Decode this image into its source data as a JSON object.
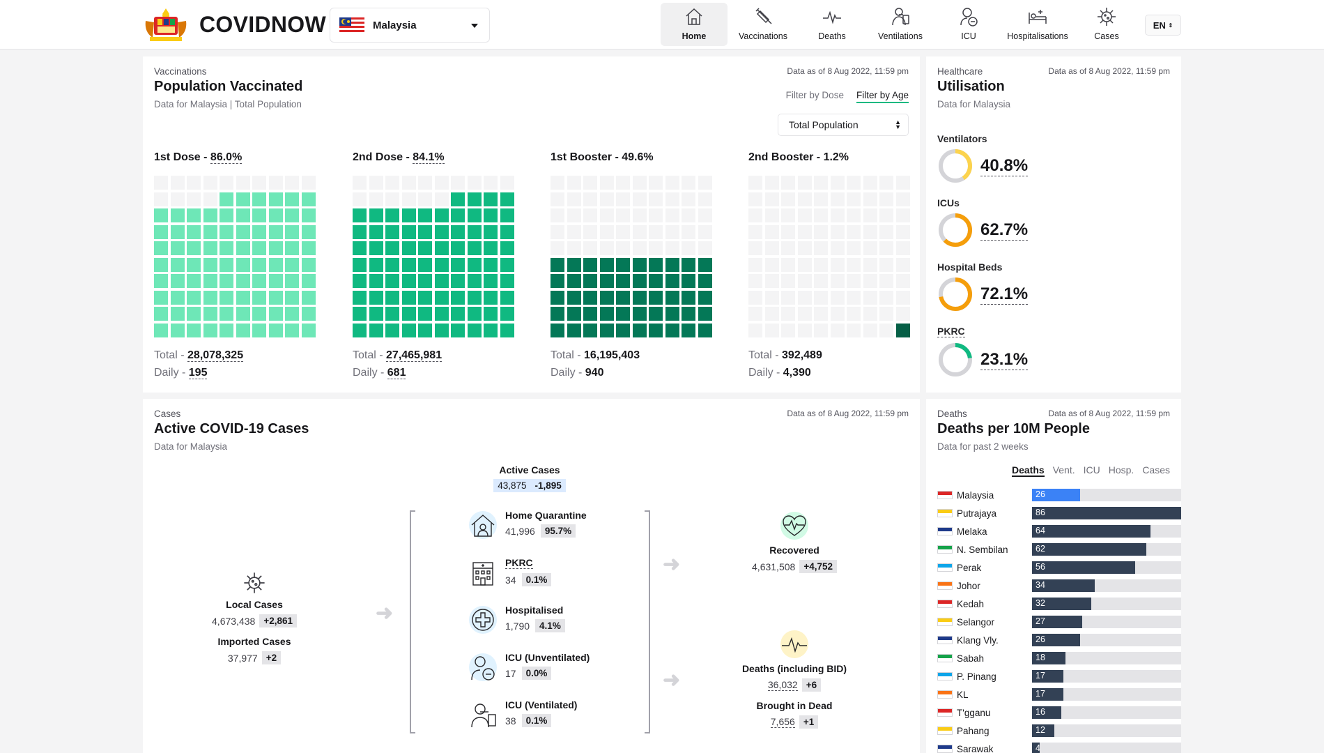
{
  "header": {
    "brand": "COVIDNOW",
    "country": "Malaysia",
    "nav": [
      "Home",
      "Vaccinations",
      "Deaths",
      "Ventilations",
      "ICU",
      "Hospitalisations",
      "Cases"
    ],
    "lang": "EN",
    "accent": "#10b981"
  },
  "vax": {
    "category": "Vaccinations",
    "title": "Population Vaccinated",
    "subtitle": "Data for Malaysia | Total Population",
    "as_of": "Data as of 8 Aug 2022, 11:59 pm",
    "filter_dose": "Filter by Dose",
    "filter_age": "Filter by Age",
    "population": "Total Population",
    "doses": [
      {
        "name": "1st Dose - ",
        "pct": "86.0%",
        "pct_value": 86.0,
        "total_label": "Total - ",
        "total": "28,078,325",
        "daily_label": "Daily - ",
        "daily": "195",
        "color": "#6ee7b7"
      },
      {
        "name": "2nd Dose - ",
        "pct": "84.1%",
        "pct_value": 84.1,
        "total_label": "Total - ",
        "total": "27,465,981",
        "daily_label": "Daily - ",
        "daily": "681",
        "color": "#10b981"
      },
      {
        "name": "1st Booster - ",
        "pct": "49.6%",
        "pct_value": 49.6,
        "total_label": "Total - ",
        "total": "16,195,403",
        "daily_label": "Daily - ",
        "daily": "940",
        "color": "#047857"
      },
      {
        "name": "2nd Booster - ",
        "pct": "1.2%",
        "pct_value": 1.2,
        "total_label": "Total - ",
        "total": "392,489",
        "daily_label": "Daily - ",
        "daily": "4,390",
        "color": "#065f46"
      }
    ]
  },
  "util": {
    "category": "Healthcare",
    "title": "Utilisation",
    "subtitle": "Data for Malaysia",
    "as_of": "Data as of 8 Aug 2022, 11:59 pm",
    "items": [
      {
        "label": "Ventilators",
        "value": "40.8%",
        "pct": 40.8,
        "color": "#fcd34d"
      },
      {
        "label": "ICUs",
        "value": "62.7%",
        "pct": 62.7,
        "color": "#f59e0b"
      },
      {
        "label": "Hospital Beds",
        "value": "72.1%",
        "pct": 72.1,
        "color": "#f59e0b"
      },
      {
        "label": "PKRC",
        "value": "23.1%",
        "pct": 23.1,
        "color": "#10b981"
      }
    ]
  },
  "cases": {
    "category": "Cases",
    "title": "Active COVID-19 Cases",
    "subtitle": "Data for Malaysia",
    "as_of": "Data as of 8 Aug 2022, 11:59 pm",
    "local": {
      "label": "Local Cases",
      "value": "4,673,438",
      "delta": "+2,861"
    },
    "imported": {
      "label": "Imported Cases",
      "value": "37,977",
      "delta": "+2"
    },
    "active": {
      "label": "Active Cases",
      "value": "43,875",
      "delta": "-1,895"
    },
    "breakdown": [
      {
        "label": "Home Quarantine",
        "value": "41,996",
        "pct": "95.7%",
        "icon": "home-quarantine-icon"
      },
      {
        "label": "PKRC",
        "value": "34",
        "pct": "0.1%",
        "icon": "pkrc-building-icon"
      },
      {
        "label": "Hospitalised",
        "value": "1,790",
        "pct": "4.1%",
        "icon": "hospital-cross-icon"
      },
      {
        "label": "ICU (Unventilated)",
        "value": "17",
        "pct": "0.0%",
        "icon": "icu-patient-icon"
      },
      {
        "label": "ICU (Ventilated)",
        "value": "38",
        "pct": "0.1%",
        "icon": "ventilated-patient-icon"
      }
    ],
    "recovered": {
      "label": "Recovered",
      "value": "4,631,508",
      "delta": "+4,752"
    },
    "deaths": {
      "label": "Deaths (including BID)",
      "value": "36,032",
      "delta": "+6"
    },
    "bid": {
      "label": "Brought in Dead",
      "value": "7,656",
      "delta": "+1"
    }
  },
  "deaths10m": {
    "category": "Deaths",
    "title": "Deaths per 10M People",
    "subtitle": "Data for past 2 weeks",
    "as_of": "Data as of 8 Aug 2022, 11:59 pm",
    "tabs": [
      "Deaths",
      "Vent.",
      "ICU",
      "Hosp.",
      "Cases"
    ],
    "max": 86,
    "rows": [
      {
        "state": "Malaysia",
        "value": 26
      },
      {
        "state": "Putrajaya",
        "value": 86
      },
      {
        "state": "Melaka",
        "value": 64
      },
      {
        "state": "N. Sembilan",
        "value": 62
      },
      {
        "state": "Perak",
        "value": 56
      },
      {
        "state": "Johor",
        "value": 34
      },
      {
        "state": "Kedah",
        "value": 32
      },
      {
        "state": "Selangor",
        "value": 27
      },
      {
        "state": "Klang Vly.",
        "value": 26
      },
      {
        "state": "Sabah",
        "value": 18
      },
      {
        "state": "P. Pinang",
        "value": 17
      },
      {
        "state": "KL",
        "value": 17
      },
      {
        "state": "T'gganu",
        "value": 16
      },
      {
        "state": "Pahang",
        "value": 12
      },
      {
        "state": "Sarawak",
        "value": 4
      }
    ]
  }
}
